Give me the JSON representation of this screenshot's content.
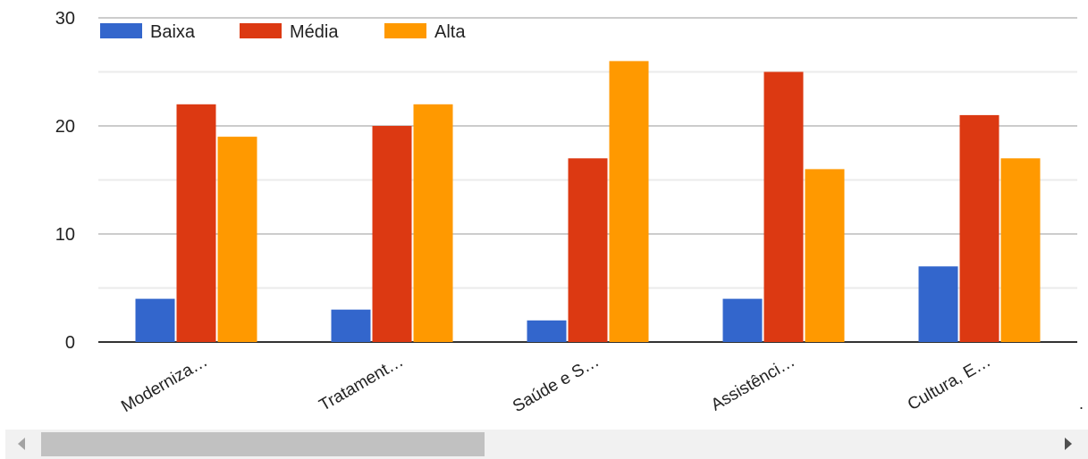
{
  "chart_data": {
    "type": "bar",
    "title": "",
    "xlabel": "",
    "ylabel": "",
    "categories": [
      "Moderniza…",
      "Tratament…",
      "Saúde e S…",
      "Assistênci…",
      "Cultura, E…"
    ],
    "series": [
      {
        "name": "Baixa",
        "color": "#3366cc",
        "values": [
          4,
          3,
          2,
          4,
          7
        ]
      },
      {
        "name": "Média",
        "color": "#dc3912",
        "values": [
          22,
          20,
          17,
          25,
          21
        ]
      },
      {
        "name": "Alta",
        "color": "#ff9900",
        "values": [
          19,
          22,
          26,
          16,
          17
        ]
      }
    ],
    "ylim": [
      0,
      30
    ],
    "yticks": [
      "0",
      "10",
      "20",
      "30"
    ],
    "grid": true,
    "legend_position": "top-left",
    "trailing_mark": "."
  },
  "scrollbar": {
    "left_arrow_icon": "triangle-left-icon",
    "right_arrow_icon": "triangle-right-icon"
  }
}
